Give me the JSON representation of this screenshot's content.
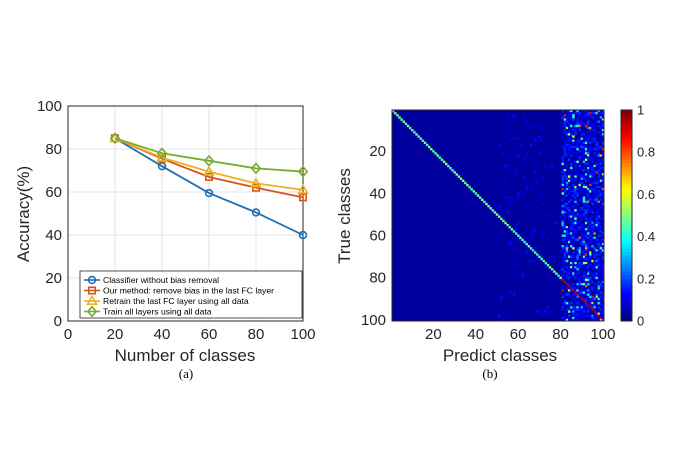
{
  "chart_data": [
    {
      "type": "line",
      "caption": "(a)",
      "xlabel": "Number of classes",
      "ylabel": "Accuracy(%)",
      "xlim": [
        0,
        100
      ],
      "ylim": [
        0,
        100
      ],
      "xticks": [
        0,
        20,
        40,
        60,
        80,
        100
      ],
      "yticks": [
        0,
        20,
        40,
        60,
        80,
        100
      ],
      "grid": true,
      "legend_position": "bottom-left",
      "x": [
        20,
        40,
        60,
        80,
        100
      ],
      "series": [
        {
          "name": "Classifier without bias removal",
          "values": [
            85,
            72,
            59.5,
            50.5,
            40
          ],
          "color": "#1f6fb4",
          "marker": "circle"
        },
        {
          "name": "Our method: remove bias in the last FC layer",
          "values": [
            85,
            75.5,
            67,
            62,
            57.5
          ],
          "color": "#d9541a",
          "marker": "square"
        },
        {
          "name": "Retrain the last FC layer using all data",
          "values": [
            85,
            76,
            69.5,
            64,
            61
          ],
          "color": "#edb120",
          "marker": "triangle"
        },
        {
          "name": "Train all layers using all data",
          "values": [
            85,
            78,
            74.5,
            71,
            69.5
          ],
          "color": "#77ac30",
          "marker": "diamond"
        }
      ]
    },
    {
      "type": "heatmap",
      "caption": "(b)",
      "xlabel": "Predict classes",
      "ylabel": "True classes",
      "size": 100,
      "xticks": [
        20,
        40,
        60,
        80,
        100
      ],
      "yticks": [
        20,
        40,
        60,
        80,
        100
      ],
      "colorbar": {
        "min": 0,
        "max": 1,
        "ticks": [
          0,
          0.2,
          0.4,
          0.6,
          0.8,
          1
        ],
        "colormap": "jet"
      },
      "description_of_values": {
        "diagonal_rows_1_to_80": 0.42,
        "diagonal_rows_81_to_100": 0.95,
        "predicted_columns_81_to_100": 0.2,
        "off_diagonal_background": 0.03
      }
    }
  ]
}
